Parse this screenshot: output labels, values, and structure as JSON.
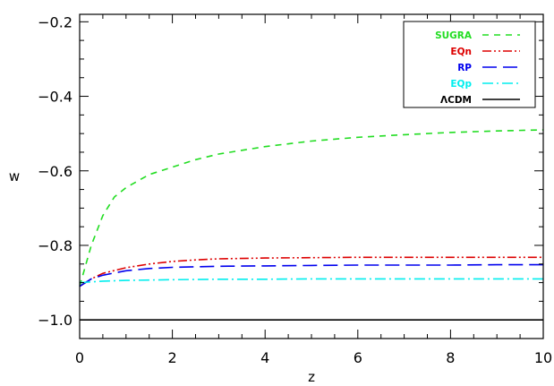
{
  "chart_data": {
    "type": "line",
    "title": "",
    "xlabel": "z",
    "ylabel": "w",
    "xlim": [
      0,
      10
    ],
    "ylim": [
      -1.05,
      -0.18
    ],
    "x_ticks": [
      0,
      2,
      4,
      6,
      8,
      10
    ],
    "x_tick_labels": [
      "0",
      "2",
      "4",
      "6",
      "8",
      "10"
    ],
    "y_ticks": [
      -1.0,
      -0.8,
      -0.6,
      -0.4,
      -0.2
    ],
    "y_tick_labels": [
      "−1.0",
      "−0.8",
      "−0.6",
      "−0.4",
      "−0.2"
    ],
    "grid": false,
    "legend_position": "top-right",
    "series": [
      {
        "name": "SUGRA",
        "color": "#22dd22",
        "dash": "dashed",
        "x": [
          0,
          0.25,
          0.5,
          0.75,
          1,
          1.5,
          2,
          2.5,
          3,
          4,
          5,
          6,
          7,
          8,
          9,
          10
        ],
        "y": [
          -0.91,
          -0.8,
          -0.72,
          -0.67,
          -0.645,
          -0.61,
          -0.59,
          -0.57,
          -0.555,
          -0.535,
          -0.52,
          -0.51,
          -0.503,
          -0.497,
          -0.493,
          -0.49
        ]
      },
      {
        "name": "EQn",
        "color": "#dd0000",
        "dash": "dash-dot-dot",
        "x": [
          0,
          0.25,
          0.5,
          1,
          1.5,
          2,
          2.5,
          3,
          4,
          5,
          6,
          7,
          8,
          9,
          10
        ],
        "y": [
          -0.91,
          -0.89,
          -0.875,
          -0.86,
          -0.85,
          -0.843,
          -0.839,
          -0.836,
          -0.834,
          -0.833,
          -0.832,
          -0.832,
          -0.832,
          -0.832,
          -0.832
        ]
      },
      {
        "name": "RP",
        "color": "#0000ee",
        "dash": "long-dashed",
        "x": [
          0,
          0.25,
          0.5,
          1,
          1.5,
          2,
          3,
          4,
          5,
          6,
          7,
          8,
          9,
          10
        ],
        "y": [
          -0.91,
          -0.89,
          -0.88,
          -0.868,
          -0.862,
          -0.859,
          -0.856,
          -0.855,
          -0.854,
          -0.853,
          -0.853,
          -0.853,
          -0.852,
          -0.852
        ]
      },
      {
        "name": "EQp",
        "color": "#00eeee",
        "dash": "dash-dot",
        "x": [
          0,
          0.25,
          0.5,
          1,
          1.5,
          2,
          3,
          4,
          5,
          6,
          7,
          8,
          9,
          10
        ],
        "y": [
          -0.9,
          -0.898,
          -0.896,
          -0.894,
          -0.893,
          -0.892,
          -0.891,
          -0.891,
          -0.89,
          -0.89,
          -0.89,
          -0.89,
          -0.89,
          -0.89
        ]
      },
      {
        "name": "ΛCDM",
        "color": "#000000",
        "dash": "solid",
        "x": [
          0,
          10
        ],
        "y": [
          -1.0,
          -1.0
        ]
      }
    ]
  }
}
